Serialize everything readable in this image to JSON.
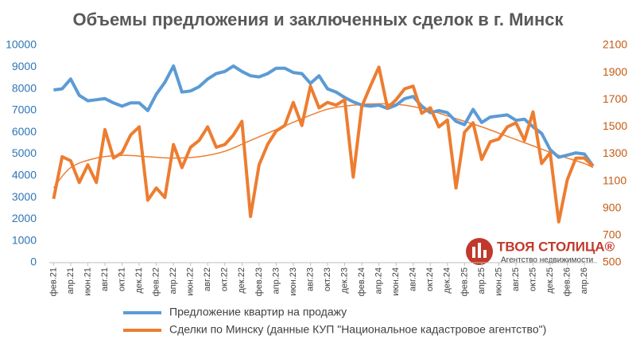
{
  "chart_data": {
    "type": "line",
    "title": "Объемы предложения и заключенных сделок в г. Минск",
    "categories": [
      "фев.21",
      null,
      "апр.21",
      null,
      "июн.21",
      null,
      "авг.21",
      null,
      "окт.21",
      null,
      "дек.21",
      null,
      "фев.22",
      null,
      "апр.22",
      null,
      "июн.22",
      null,
      "авг.22",
      null,
      "окт.22",
      null,
      "дек.22",
      null,
      "фев.23",
      null,
      "апр.23",
      null,
      "июн.23",
      null,
      "авг.23",
      null,
      "окт.23",
      null,
      "дек.23",
      null,
      "фев.24",
      null,
      "апр.24",
      null,
      "июн.24",
      null,
      "авг.24",
      null,
      "окт.24",
      null,
      "дек.24",
      null,
      "фев.25",
      null,
      "апр.25",
      null,
      "июн.25",
      null,
      "авг.25",
      null,
      "окт.25",
      null,
      "дек.25",
      null,
      "фев.26",
      null,
      "апр.26",
      null
    ],
    "series": [
      {
        "name": "Предложение квартир на продажу",
        "color": "#5b9bd5",
        "axis": "y",
        "values": [
          7950,
          8000,
          8450,
          7700,
          7450,
          7500,
          7550,
          7350,
          7200,
          7350,
          7350,
          7000,
          7750,
          8300,
          9050,
          7850,
          7900,
          8100,
          8450,
          8700,
          8800,
          9050,
          8800,
          8600,
          8550,
          8700,
          8950,
          8950,
          8750,
          8700,
          8250,
          8600,
          8000,
          7850,
          7600,
          7400,
          7250,
          7200,
          7250,
          7100,
          7250,
          7550,
          7650,
          7200,
          6900,
          7000,
          6900,
          6500,
          6350,
          7050,
          6450,
          6700,
          6750,
          6800,
          6550,
          6600,
          6250,
          5950,
          5200,
          4850,
          4950,
          5050,
          5000,
          4450
        ]
      },
      {
        "name": "Сделки по Минску (данные КУП \"Национальное кадастровое агентство\")",
        "color": "#ed7d31",
        "axis": "y2",
        "values": [
          970,
          1280,
          1250,
          1090,
          1220,
          1090,
          1480,
          1270,
          1310,
          1440,
          1500,
          960,
          1050,
          980,
          1370,
          1200,
          1350,
          1400,
          1500,
          1350,
          1370,
          1440,
          1540,
          840,
          1220,
          1370,
          1470,
          1510,
          1680,
          1510,
          1800,
          1640,
          1680,
          1660,
          1700,
          1130,
          1650,
          1800,
          1940,
          1640,
          1700,
          1780,
          1800,
          1600,
          1640,
          1500,
          1550,
          1050,
          1460,
          1530,
          1260,
          1390,
          1410,
          1500,
          1530,
          1400,
          1610,
          1230,
          1310,
          800,
          1110,
          1270,
          1270,
          1210
        ]
      }
    ],
    "trendline": {
      "color": "#ed7d31",
      "axis": "y2",
      "x": [
        0,
        2,
        5,
        8,
        11,
        14,
        17,
        20,
        23,
        26,
        29,
        32,
        35,
        38,
        41,
        44,
        47,
        50,
        53,
        56,
        59,
        62,
        63
      ],
      "values": [
        1050,
        1200,
        1270,
        1290,
        1280,
        1270,
        1280,
        1320,
        1400,
        1480,
        1560,
        1630,
        1660,
        1670,
        1660,
        1620,
        1560,
        1500,
        1430,
        1360,
        1290,
        1230,
        1200
      ]
    },
    "ylim": [
      0,
      10000
    ],
    "yticks": [
      0,
      1000,
      2000,
      3000,
      4000,
      5000,
      6000,
      7000,
      8000,
      9000,
      10000
    ],
    "y2lim": [
      500,
      2100
    ],
    "y2ticks": [
      500,
      700,
      900,
      1100,
      1300,
      1500,
      1700,
      1900,
      2100
    ],
    "grid": false,
    "legend": "bottom",
    "logo": {
      "name": "ТВОЯ СТОЛИЦА®",
      "tagline": "Агентство недвижимости"
    }
  }
}
